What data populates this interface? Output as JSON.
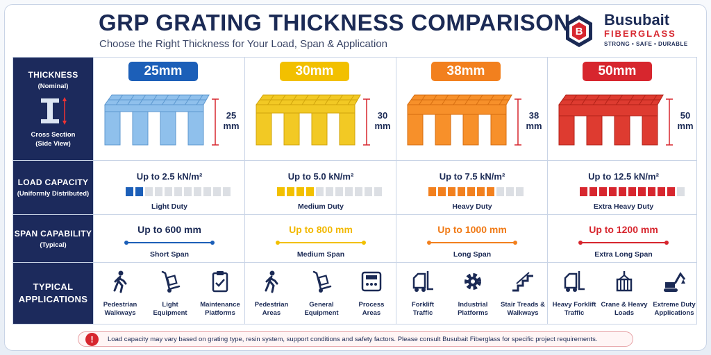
{
  "header": {
    "title": "GRP GRATING THICKNESS COMPARISON",
    "subtitle": "Choose the Right Thickness for Your Load, Span & Application"
  },
  "brand": {
    "name": "Busubait",
    "sub": "FIBERGLASS",
    "tagline": "STRONG • SAFE • DURABLE",
    "logo_letter": "B",
    "colors": {
      "navy": "#1b2a55",
      "red": "#d7262e"
    }
  },
  "rows": {
    "thickness": {
      "label": "THICKNESS",
      "sub": "(Nominal)",
      "diagram_label": "Cross Section\n(Side View)"
    },
    "load": {
      "label": "LOAD CAPACITY",
      "sub": "(Uniformly Distributed)"
    },
    "span": {
      "label": "SPAN CAPABILITY",
      "sub": "(Typical)"
    },
    "apps": {
      "label": "TYPICAL\nAPPLICATIONS"
    }
  },
  "columns": [
    {
      "thickness": "25mm",
      "dim_value": "25",
      "dim_unit": "mm",
      "color": "#8fc0ec",
      "dark": "#5c97cf",
      "load": "Up to 2.5 kN/m²",
      "load_level": 2,
      "load_total": 11,
      "load_color": "#1c5fb8",
      "duty": "Light Duty",
      "span": "Up to 600 mm",
      "span_color": "#1c5fb8",
      "span_text_color": "#1b2a55",
      "span_desc": "Short Span",
      "apps": [
        {
          "icon": "pedestrian-icon",
          "label": "Pedestrian\nWalkways"
        },
        {
          "icon": "hand-truck-icon",
          "label": "Light\nEquipment"
        },
        {
          "icon": "clipboard-check-icon",
          "label": "Maintenance\nPlatforms"
        }
      ]
    },
    {
      "thickness": "30mm",
      "dim_value": "30",
      "dim_unit": "mm",
      "color": "#f2c924",
      "dark": "#d0a40c",
      "load": "Up to 5.0 kN/m²",
      "load_level": 4,
      "load_total": 11,
      "load_color": "#f2c000",
      "duty": "Medium Duty",
      "span": "Up to 800 mm",
      "span_color": "#f2c000",
      "span_text_color": "#f2b800",
      "span_desc": "Medium Span",
      "apps": [
        {
          "icon": "pedestrian-icon",
          "label": "Pedestrian\nAreas"
        },
        {
          "icon": "hand-truck-icon",
          "label": "General\nEquipment"
        },
        {
          "icon": "control-panel-icon",
          "label": "Process\nAreas"
        }
      ]
    },
    {
      "thickness": "38mm",
      "dim_value": "38",
      "dim_unit": "mm",
      "color": "#f7902a",
      "dark": "#d66d10",
      "load": "Up to 7.5 kN/m²",
      "load_level": 7,
      "load_total": 10,
      "load_color": "#f2801e",
      "duty": "Heavy Duty",
      "span": "Up to 1000 mm",
      "span_color": "#f2801e",
      "span_text_color": "#f07a16",
      "span_desc": "Long Span",
      "apps": [
        {
          "icon": "forklift-icon",
          "label": "Forklift\nTraffic"
        },
        {
          "icon": "gear-icon",
          "label": "Industrial\nPlatforms"
        },
        {
          "icon": "stairs-icon",
          "label": "Stair Treads &\nWalkways"
        }
      ]
    },
    {
      "thickness": "50mm",
      "dim_value": "50",
      "dim_unit": "mm",
      "color": "#de3b30",
      "dark": "#b22218",
      "load": "Up to 12.5 kN/m²",
      "load_level": 10,
      "load_total": 11,
      "load_color": "#d7262e",
      "duty": "Extra Heavy Duty",
      "span": "Up to 1200 mm",
      "span_color": "#d7262e",
      "span_text_color": "#d7262e",
      "span_desc": "Extra Long Span",
      "apps": [
        {
          "icon": "forklift-icon",
          "label": "Heavy Forklift\nTraffic"
        },
        {
          "icon": "crane-load-icon",
          "label": "Crane & Heavy\nLoads"
        },
        {
          "icon": "excavator-icon",
          "label": "Extreme Duty\nApplications"
        }
      ]
    }
  ],
  "note": "Load capacity may vary based on grating type, resin system, support conditions and safety factors. Please consult Busubait Fiberglass for specific project requirements."
}
